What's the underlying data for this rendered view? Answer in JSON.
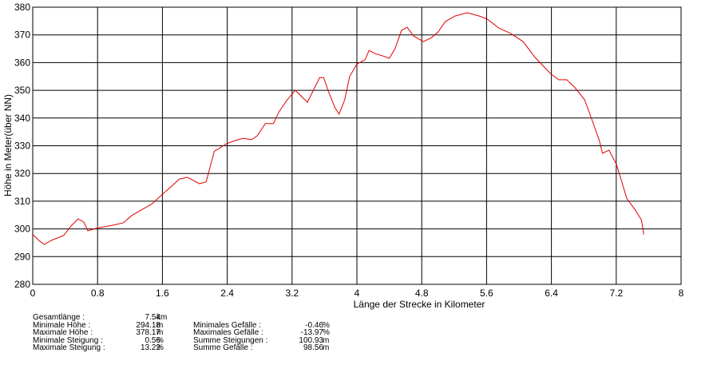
{
  "chart_data": {
    "type": "line",
    "x_label": "Länge der Strecke in Kilometer",
    "y_label": "Höhe in Meter(über NN)",
    "xlim": [
      0,
      8
    ],
    "xticks": [
      0,
      0.8,
      1.6,
      2.4,
      3.2,
      4,
      4.8,
      5.6,
      6.4,
      7.2,
      8
    ],
    "ylim": [
      280,
      380
    ],
    "yticks": [
      280,
      290,
      300,
      310,
      320,
      330,
      340,
      350,
      360,
      370,
      380
    ],
    "grid": true,
    "series": [
      {
        "color": "#e00000",
        "x": [
          0,
          0.07,
          0.14,
          0.24,
          0.38,
          0.48,
          0.56,
          0.63,
          0.68,
          0.78,
          0.98,
          1.12,
          1.22,
          1.35,
          1.47,
          1.57,
          1.66,
          1.81,
          1.91,
          2.06,
          2.14,
          2.24,
          2.39,
          2.5,
          2.6,
          2.7,
          2.77,
          2.87,
          2.97,
          3.04,
          3.14,
          3.24,
          3.39,
          3.54,
          3.59,
          3.65,
          3.73,
          3.78,
          3.85,
          3.91,
          4.0,
          4.1,
          4.15,
          4.23,
          4.32,
          4.4,
          4.47,
          4.55,
          4.62,
          4.7,
          4.82,
          4.92,
          5.0,
          5.09,
          5.21,
          5.36,
          5.51,
          5.61,
          5.75,
          5.9,
          6.05,
          6.2,
          6.39,
          6.49,
          6.59,
          6.69,
          6.81,
          6.9,
          6.99,
          7.03,
          7.11,
          7.2,
          7.26,
          7.33,
          7.43,
          7.51,
          7.54
        ],
        "values": [
          298,
          296,
          294.4,
          296,
          297.6,
          301.3,
          303.6,
          302.5,
          299.3,
          300.2,
          301.3,
          302.2,
          304.8,
          307,
          309,
          311.7,
          314,
          318,
          318.6,
          316.3,
          317,
          328,
          330.7,
          331.9,
          332.7,
          332.2,
          333.6,
          338,
          338,
          342.3,
          346.6,
          350,
          345.7,
          354.6,
          354.6,
          349.5,
          343.7,
          341.4,
          346.6,
          355,
          359.5,
          361,
          364.4,
          363.2,
          362.4,
          361.6,
          365,
          371.6,
          372.8,
          369.6,
          367.6,
          369,
          371,
          374.8,
          376.8,
          378,
          376.8,
          375.7,
          372.5,
          370.5,
          367.6,
          361.8,
          356,
          353.8,
          353.8,
          351,
          346.6,
          339.4,
          332,
          327.3,
          328.4,
          323.5,
          317.8,
          311,
          307,
          303.3,
          298
        ]
      }
    ]
  },
  "stats": [
    {
      "label": "Gesamtlänge :",
      "value": "7.54",
      "unit": "km"
    },
    {
      "label": "Minimale Höhe :",
      "value": "294.18",
      "unit": "m"
    },
    {
      "label": "Maximale Höhe :",
      "value": "378.17",
      "unit": "m"
    },
    {
      "label": "Minimale Steigung :",
      "value": "0.56",
      "unit": "%"
    },
    {
      "label": "Maximale Steigung :",
      "value": "13.22",
      "unit": "%"
    },
    {
      "label": "Minimales Gefälle :",
      "value": "-0.46",
      "unit": "%"
    },
    {
      "label": "Maximales Gefälle :",
      "value": "-13.97",
      "unit": "%"
    },
    {
      "label": "Summe Steigungen :",
      "value": "100.93",
      "unit": "m"
    },
    {
      "label": "Summe Gefälle :",
      "value": "98.56",
      "unit": "m"
    }
  ]
}
